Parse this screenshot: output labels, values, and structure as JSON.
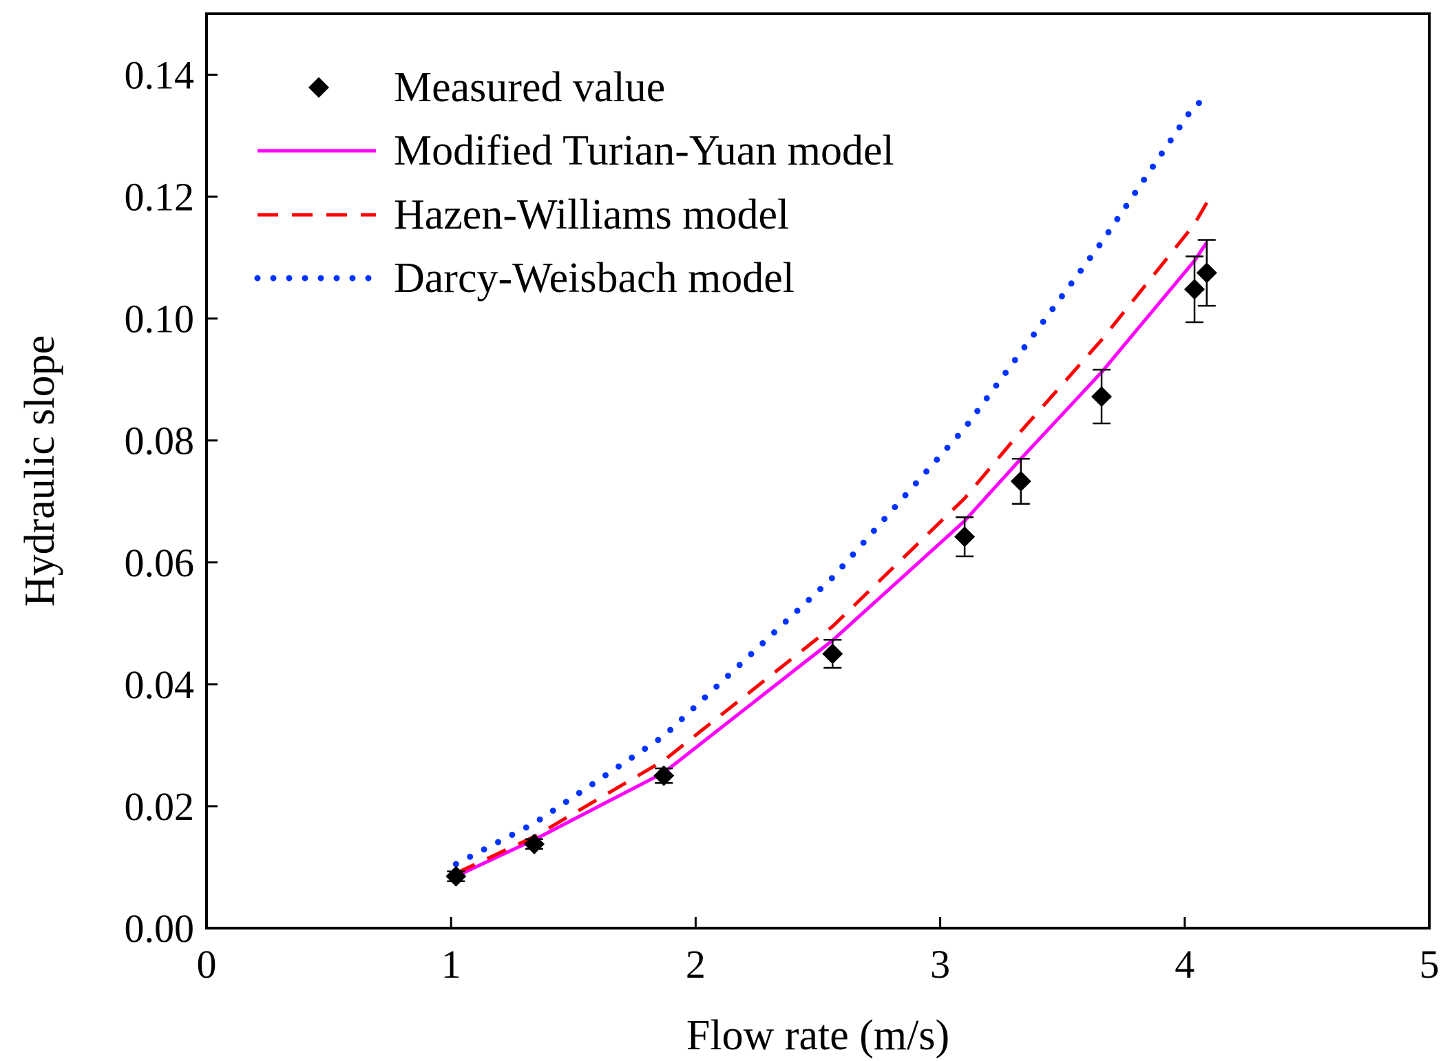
{
  "chart_data": {
    "type": "line",
    "title": "",
    "xlabel": "Flow rate (m/s)",
    "ylabel": "Hydraulic slope",
    "xlim": [
      0,
      5
    ],
    "ylim": [
      0,
      0.15
    ],
    "x_ticks": [
      0,
      1,
      2,
      3,
      4,
      5
    ],
    "x_tick_labels": [
      "0",
      "1",
      "2",
      "3",
      "4",
      "5"
    ],
    "y_ticks": [
      0,
      0.02,
      0.04,
      0.06,
      0.08,
      0.1,
      0.12,
      0.14
    ],
    "y_tick_labels": [
      "0.00",
      "0.02",
      "0.04",
      "0.06",
      "0.08",
      "0.10",
      "0.12",
      "0.14"
    ],
    "grid": false,
    "legend_position": "top-left",
    "measured": {
      "name": "Measured value",
      "color": "#000000",
      "x": [
        1.02,
        1.34,
        1.87,
        2.56,
        3.1,
        3.33,
        3.66,
        4.04,
        4.09
      ],
      "y": [
        0.0085,
        0.0138,
        0.025,
        0.045,
        0.0642,
        0.0733,
        0.0872,
        0.1048,
        0.1075
      ],
      "err": [
        0.0008,
        0.0008,
        0.0012,
        0.0023,
        0.0032,
        0.0037,
        0.0044,
        0.0054,
        0.0054
      ]
    },
    "series": [
      {
        "name": "Modified Turian-Yuan model",
        "color": "#ff00ff",
        "style": "solid",
        "x": [
          1.02,
          1.34,
          1.87,
          2.56,
          3.1,
          3.33,
          3.66,
          4.04,
          4.09
        ],
        "y": [
          0.0085,
          0.0145,
          0.0255,
          0.0472,
          0.0668,
          0.077,
          0.0912,
          0.1095,
          0.1125
        ]
      },
      {
        "name": "Hazen-Williams model",
        "color": "#ff0000",
        "style": "dashed",
        "x": [
          1.02,
          1.34,
          1.87,
          2.56,
          3.1,
          3.33,
          3.66,
          4.04,
          4.09
        ],
        "y": [
          0.009,
          0.015,
          0.0275,
          0.0495,
          0.0705,
          0.0815,
          0.0965,
          0.1155,
          0.119
        ]
      },
      {
        "name": "Darcy-Weisbach model",
        "color": "#0033ff",
        "style": "dotted",
        "x": [
          1.02,
          1.34,
          1.87,
          2.56,
          3.1,
          3.33,
          3.66,
          4.04,
          4.09
        ],
        "y": [
          0.0105,
          0.0172,
          0.0315,
          0.0575,
          0.082,
          0.0945,
          0.1125,
          0.135,
          0.136
        ]
      }
    ]
  }
}
